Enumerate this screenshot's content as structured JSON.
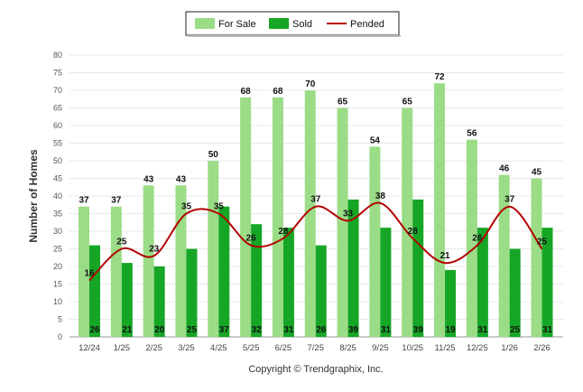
{
  "chart_data": {
    "type": "bar",
    "title": "",
    "xlabel": "",
    "ylabel": "Number of Homes",
    "ylim": [
      0,
      80
    ],
    "ytick_step": 5,
    "categories": [
      "12/24",
      "1/25",
      "2/25",
      "3/25",
      "4/25",
      "5/25",
      "6/25",
      "7/25",
      "8/25",
      "9/25",
      "10/25",
      "11/25",
      "12/25",
      "1/26",
      "2/26"
    ],
    "series": [
      {
        "name": "For Sale",
        "kind": "bar",
        "color": "#9bdc87",
        "values": [
          37,
          37,
          43,
          43,
          50,
          68,
          68,
          70,
          65,
          54,
          65,
          72,
          56,
          46,
          45
        ]
      },
      {
        "name": "Sold",
        "kind": "bar",
        "color": "#16a626",
        "values": [
          26,
          21,
          20,
          25,
          37,
          32,
          31,
          26,
          39,
          31,
          39,
          19,
          31,
          25,
          31
        ]
      },
      {
        "name": "Pended",
        "kind": "line",
        "color": "#b30000",
        "values": [
          16,
          25,
          23,
          35,
          35,
          26,
          28,
          37,
          33,
          38,
          28,
          21,
          26,
          37,
          25
        ]
      }
    ],
    "legend": "top-center",
    "grid": true,
    "footer": "Copyright © Trendgraphix, Inc."
  }
}
